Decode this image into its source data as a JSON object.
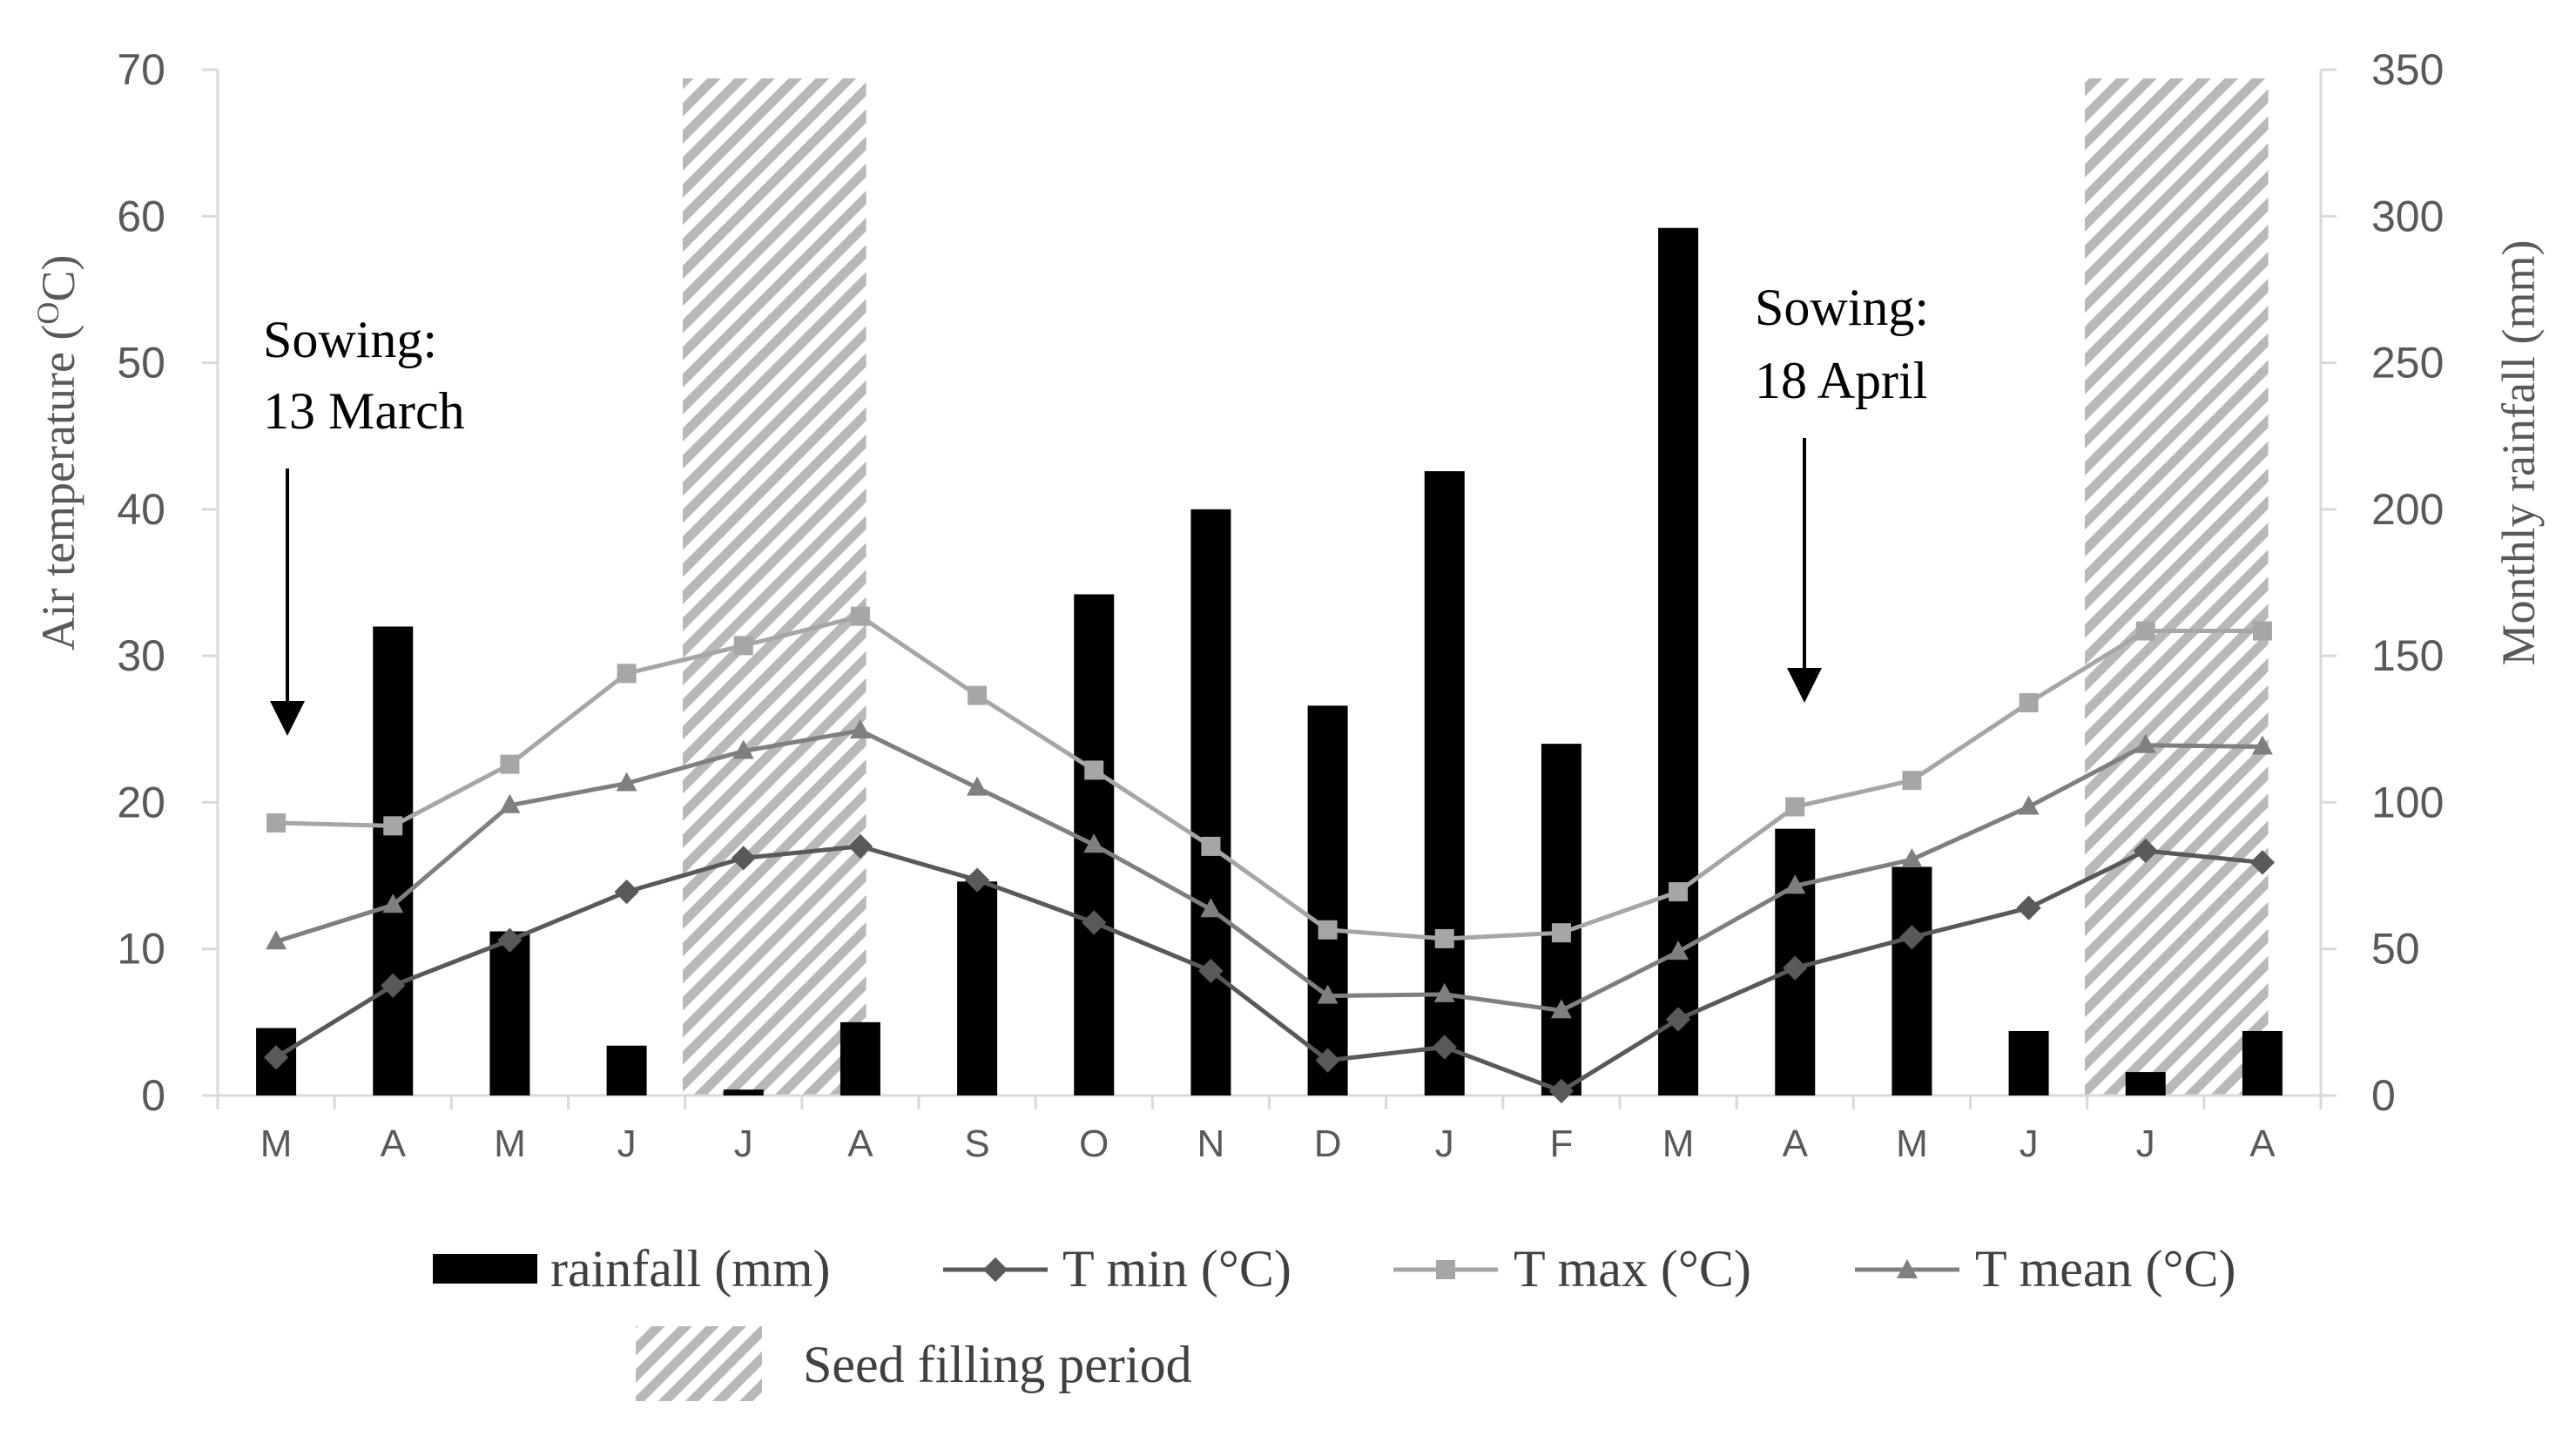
{
  "chart_data": {
    "type": "bar+line",
    "categories": [
      "M",
      "A",
      "M",
      "J",
      "J",
      "A",
      "S",
      "O",
      "N",
      "D",
      "J",
      "F",
      "M",
      "A",
      "M",
      "J",
      "J",
      "A"
    ],
    "left_axis": {
      "label": "Air temperature (°C)",
      "label_main": "Air temperature (",
      "label_sup": "O",
      "label_end": "C)",
      "range": [
        0,
        70
      ],
      "ticks": [
        0,
        10,
        20,
        30,
        40,
        50,
        60,
        70
      ]
    },
    "right_axis": {
      "label": "Monthly rainfall (mm)",
      "range": [
        0,
        350
      ],
      "ticks": [
        0,
        50,
        100,
        150,
        200,
        250,
        300,
        350
      ]
    },
    "series": [
      {
        "name": "rainfall (mm)",
        "type": "bar",
        "axis": "right",
        "color": "#000000",
        "values": [
          23,
          160,
          56,
          17,
          2,
          25,
          73,
          171,
          200,
          133,
          213,
          120,
          296,
          91,
          78,
          22,
          8,
          22
        ]
      },
      {
        "name": "T min (°C)",
        "type": "line",
        "axis": "left",
        "marker": "diamond",
        "color": "#595959",
        "values": [
          2.6,
          7.5,
          10.6,
          13.9,
          16.2,
          17.0,
          14.7,
          11.8,
          8.5,
          2.4,
          3.3,
          0.3,
          5.2,
          8.7,
          10.8,
          12.8,
          16.7,
          15.9
        ]
      },
      {
        "name": "T max (°C)",
        "type": "line",
        "axis": "left",
        "marker": "square",
        "color": "#a6a6a6",
        "values": [
          18.6,
          18.4,
          22.6,
          28.8,
          30.7,
          32.7,
          27.3,
          22.2,
          17.0,
          11.3,
          10.7,
          11.1,
          13.9,
          19.7,
          21.5,
          26.8,
          31.7,
          31.7
        ]
      },
      {
        "name": "T mean (°C)",
        "type": "line",
        "axis": "left",
        "marker": "triangle",
        "color": "#7f7f7f",
        "values": [
          10.5,
          13.0,
          19.8,
          21.3,
          23.5,
          24.9,
          21.0,
          17.1,
          12.7,
          6.8,
          6.9,
          5.8,
          9.8,
          14.3,
          16.1,
          19.7,
          23.9,
          23.8
        ]
      }
    ],
    "seed_filling_periods": [
      {
        "from": "J",
        "to": "A",
        "from_index": 4,
        "to_index": 5
      },
      {
        "from": "J",
        "to": "A",
        "from_index": 16,
        "to_index": 17
      }
    ],
    "annotations": [
      {
        "line1": "Sowing:",
        "line2": "13 March",
        "index": 0
      },
      {
        "line1": "Sowing:",
        "line2": "18 April",
        "index": 13
      }
    ],
    "legend": {
      "rainfall": "rainfall (mm)",
      "tmin": "T min (°C)",
      "tmax": "T max (°C)",
      "tmean": "T mean (°C)",
      "seed": "Seed filling period"
    },
    "grid": false,
    "legend_position": "bottom"
  }
}
